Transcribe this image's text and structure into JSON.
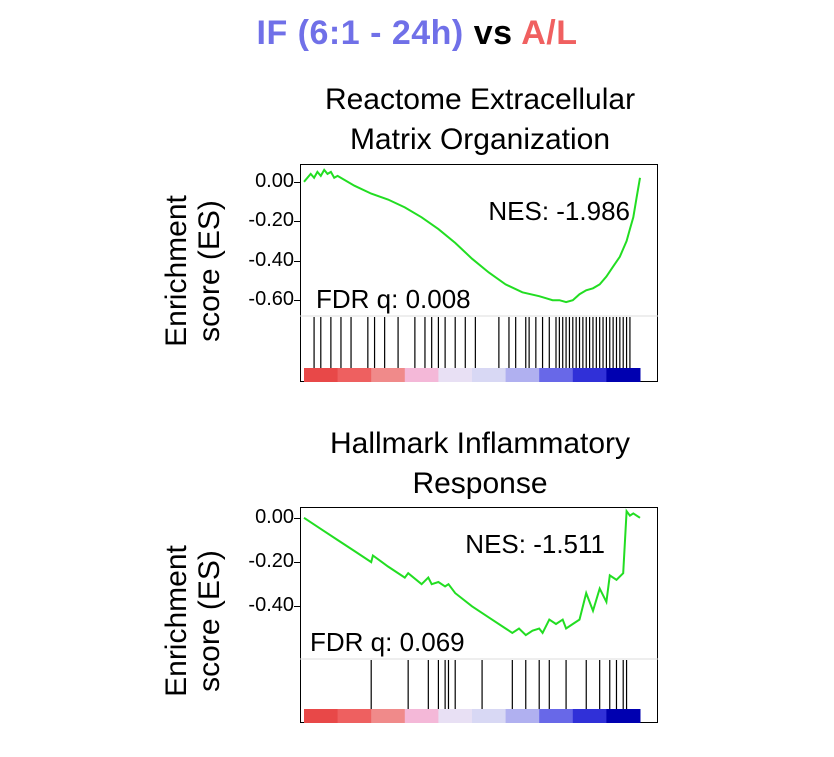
{
  "header": {
    "part1": "IF (6:1 - 24h)",
    "part2": " vs ",
    "part3": "A/L",
    "color1": "#7070e8",
    "color2": "#000000",
    "color3": "#f06060"
  },
  "chart_data": [
    {
      "type": "line",
      "title_line1": "Reactome Extracellular",
      "title_line2": "Matrix Organization",
      "ylabel_line1": "Enrichment",
      "ylabel_line2": "score (ES)",
      "yticks": [
        "0.00",
        "-0.20",
        "-0.40",
        "-0.60"
      ],
      "ytick_values": [
        0.0,
        -0.2,
        -0.4,
        -0.6
      ],
      "ylim": [
        -0.66,
        0.08
      ],
      "xlim": [
        0,
        100
      ],
      "nes_label": "NES: -1.986",
      "fdr_label": "FDR q: 0.008",
      "line_color": "#22dd22",
      "series": [
        {
          "x": [
            0,
            2,
            3,
            4,
            5,
            6,
            7,
            8,
            9,
            10,
            15,
            20,
            25,
            30,
            35,
            40,
            45,
            50,
            55,
            60,
            65,
            70,
            72,
            74,
            76,
            78,
            80,
            82,
            84,
            86,
            88,
            90,
            92,
            94,
            95,
            96,
            97,
            98,
            99,
            100
          ],
          "y": [
            0.0,
            0.04,
            0.02,
            0.05,
            0.03,
            0.06,
            0.04,
            0.05,
            0.02,
            0.03,
            -0.02,
            -0.06,
            -0.09,
            -0.13,
            -0.18,
            -0.24,
            -0.31,
            -0.39,
            -0.46,
            -0.52,
            -0.56,
            -0.58,
            -0.59,
            -0.6,
            -0.6,
            -0.61,
            -0.6,
            -0.57,
            -0.55,
            -0.54,
            -0.52,
            -0.48,
            -0.43,
            -0.38,
            -0.34,
            -0.3,
            -0.24,
            -0.18,
            -0.08,
            0.02
          ]
        }
      ],
      "hit_positions": [
        3,
        5,
        8,
        11,
        14,
        19,
        21,
        24,
        28,
        33,
        36,
        38,
        40,
        42,
        45,
        48,
        51,
        58,
        61,
        63,
        66,
        67,
        69,
        71,
        73,
        75,
        76,
        77,
        78,
        79,
        80,
        81,
        82,
        83,
        84,
        85,
        86,
        87,
        88,
        89,
        90,
        91,
        92,
        93,
        94,
        95,
        96,
        97
      ],
      "color_bar": [
        "#e84848",
        "#ee6060",
        "#f08a8a",
        "#f4b8d8",
        "#e8e0f4",
        "#d8d8f4",
        "#b0b0f0",
        "#6868e8",
        "#3030d8",
        "#0000b0"
      ]
    },
    {
      "type": "line",
      "title_line1": "Hallmark Inflammatory",
      "title_line2": "Response",
      "ylabel_line1": "Enrichment",
      "ylabel_line2": "score (ES)",
      "yticks": [
        "0.00",
        "-0.20",
        "-0.40"
      ],
      "ytick_values": [
        0.0,
        -0.2,
        -0.4
      ],
      "ylim": [
        -0.62,
        0.04
      ],
      "xlim": [
        0,
        100
      ],
      "nes_label": "NES: -1.511",
      "fdr_label": "FDR q: 0.069",
      "line_color": "#22dd22",
      "series": [
        {
          "x": [
            0,
            5,
            10,
            15,
            20,
            20.5,
            25,
            30,
            31,
            35,
            37,
            38,
            40,
            42,
            43,
            45,
            50,
            55,
            60,
            62,
            64,
            66,
            68,
            70,
            71,
            73,
            75,
            77,
            78,
            80,
            82,
            84,
            86,
            88,
            90,
            91,
            93,
            95,
            96,
            97,
            98,
            100
          ],
          "y": [
            0.0,
            -0.05,
            -0.1,
            -0.15,
            -0.2,
            -0.17,
            -0.22,
            -0.27,
            -0.25,
            -0.3,
            -0.27,
            -0.3,
            -0.29,
            -0.31,
            -0.3,
            -0.34,
            -0.4,
            -0.45,
            -0.5,
            -0.52,
            -0.5,
            -0.53,
            -0.51,
            -0.5,
            -0.52,
            -0.46,
            -0.48,
            -0.46,
            -0.5,
            -0.48,
            -0.46,
            -0.34,
            -0.42,
            -0.32,
            -0.38,
            -0.26,
            -0.28,
            -0.25,
            0.03,
            0.01,
            0.02,
            0.0
          ]
        }
      ],
      "hit_positions": [
        20,
        31,
        37,
        40,
        42,
        43,
        45,
        53,
        62,
        66,
        70,
        73,
        78,
        84,
        88,
        91,
        93,
        95,
        96
      ],
      "color_bar": [
        "#e84848",
        "#ee6060",
        "#f08a8a",
        "#f4b8d8",
        "#e8e0f4",
        "#d8d8f4",
        "#b0b0f0",
        "#6868e8",
        "#3030d8",
        "#0000b0"
      ]
    }
  ]
}
